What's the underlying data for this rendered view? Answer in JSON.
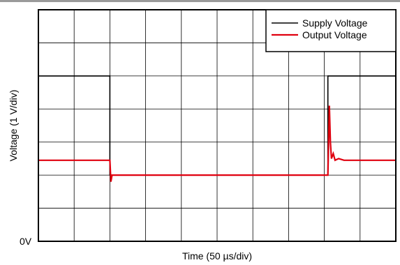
{
  "chart_data": {
    "type": "line",
    "title": "",
    "xlabel": "Time (50 µs/div)",
    "ylabel": "Voltage (1 V/div)",
    "y_tick_label": "0V",
    "xlim": [
      0,
      10
    ],
    "ylim": [
      0,
      7
    ],
    "x_unit": "div",
    "y_unit": "div",
    "grid": true,
    "legend_position": "top-right",
    "series": [
      {
        "name": "Supply Voltage",
        "color": "#000000",
        "x": [
          0,
          2.0,
          2.0,
          8.1,
          8.1,
          10
        ],
        "y": [
          5.0,
          5.0,
          2.0,
          2.0,
          5.0,
          5.0
        ]
      },
      {
        "name": "Output Voltage",
        "color": "#e0000f",
        "x": [
          0,
          2.0,
          2.03,
          2.06,
          2.1,
          2.2,
          8.1,
          8.14,
          8.17,
          8.2,
          8.25,
          8.3,
          8.4,
          8.55,
          10
        ],
        "y": [
          2.45,
          2.45,
          1.8,
          2.0,
          2.0,
          2.0,
          2.0,
          4.1,
          3.0,
          2.5,
          2.65,
          2.45,
          2.5,
          2.45,
          2.45
        ]
      }
    ]
  }
}
